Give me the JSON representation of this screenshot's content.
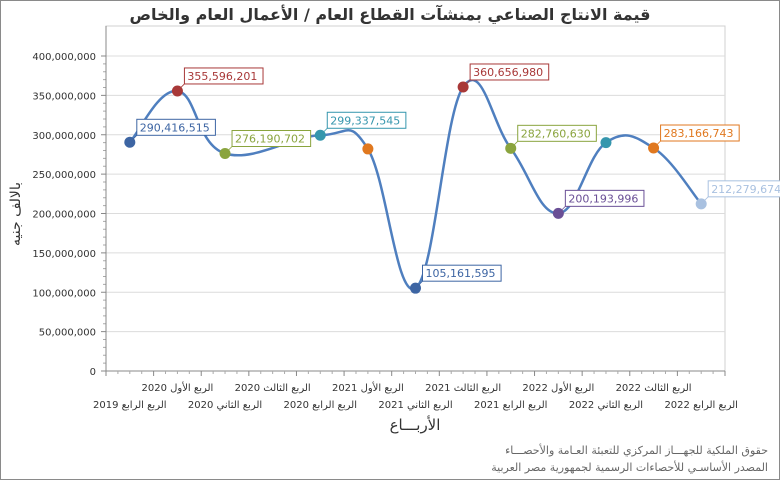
{
  "chart_data": {
    "type": "line",
    "title": "قيمة الانتاج الصناعي بمنشآت القطاع العام / الأعمال العام والخاص",
    "xlabel": "الأربـــاع",
    "ylabel": "بالالف جنيه",
    "ylim": [
      0,
      400000000
    ],
    "yticks": [
      "0",
      "50,000,000",
      "100,000,000",
      "150,000,000",
      "200,000,000",
      "250,000,000",
      "300,000,000",
      "350,000,000",
      "400,000,000"
    ],
    "grid": true,
    "smooth": true,
    "categories": [
      "الربع الرابع 2019",
      "الربع الأول 2020",
      "الربع الثاني 2020",
      "الربع الثالث 2020",
      "الربع الرابع 2020",
      "الربع الأول 2021",
      "الربع الثاني 2021",
      "الربع الثالث 2021",
      "الربع الرابع 2021",
      "الربع الأول 2022",
      "الربع الثاني 2022",
      "الربع الثالث 2022",
      "الربع الرابع 2022"
    ],
    "values": [
      290416515,
      355596201,
      276190702,
      null,
      299337545,
      282000000,
      105161595,
      360656980,
      282760630,
      200193996,
      290000000,
      283166743,
      212279674
    ],
    "data_labels": [
      "290,416,515",
      "355,596,201",
      "276,190,702",
      "",
      "299,337,545",
      "",
      "105,161,595",
      "360,656,980",
      "282,760,630",
      "200,193,996",
      "",
      "283,166,743",
      "212,279,674"
    ],
    "point_colors": [
      "#3d65a3",
      "#a83838",
      "#8aa43e",
      "#6a4f96",
      "#3596ad",
      "#e0781f",
      "#3d65a3",
      "#a83838",
      "#8aa43e",
      "#6a4f96",
      "#3596ad",
      "#e0781f",
      "#a9c1e0"
    ],
    "line_color": "#4f7fbf"
  },
  "footer": {
    "line1": "حقوق الملكية للجهـــاز المركزي للتعبئة العـامة والأحصـــاء",
    "line2": "المصدر الأساسـي للأحصاءات الرسمية لجمهورية مصر العربية"
  }
}
